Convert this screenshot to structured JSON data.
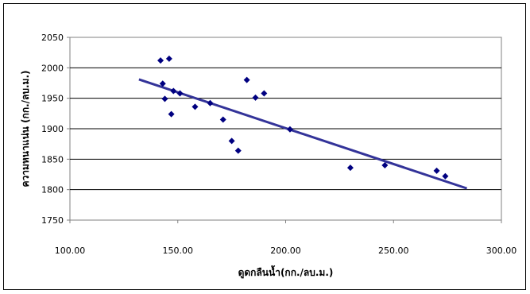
{
  "chart_data": {
    "type": "scatter",
    "title": "",
    "xlabel": "ดูดกลืนน้ำ(กก./ลบ.ม.)",
    "ylabel": "ความหนาแน่น (กก./ลบ.ม.)",
    "xlim": [
      100,
      300
    ],
    "ylim": [
      1750,
      2050
    ],
    "xticks": [
      "100.00",
      "150.00",
      "200.00",
      "250.00",
      "300.00"
    ],
    "yticks": [
      "1750",
      "1800",
      "1850",
      "1900",
      "1950",
      "2000",
      "2050"
    ],
    "grid": "horizontal",
    "series": [
      {
        "points": [
          [
            142,
            2012
          ],
          [
            146,
            2015
          ],
          [
            143,
            1974
          ],
          [
            144,
            1949
          ],
          [
            147,
            1924
          ],
          [
            148,
            1962
          ],
          [
            151,
            1958
          ],
          [
            158,
            1936
          ],
          [
            165,
            1942
          ],
          [
            171,
            1915
          ],
          [
            175,
            1880
          ],
          [
            178,
            1864
          ],
          [
            182,
            1980
          ],
          [
            186,
            1951
          ],
          [
            190,
            1958
          ],
          [
            202,
            1899
          ],
          [
            230,
            1836
          ],
          [
            246,
            1840
          ],
          [
            270,
            1831
          ],
          [
            274,
            1822
          ]
        ]
      }
    ],
    "trendline": {
      "x": [
        132,
        284
      ],
      "y": [
        1981,
        1802
      ]
    },
    "colors": {
      "marker": "#000080",
      "trendline": "#333399"
    }
  }
}
